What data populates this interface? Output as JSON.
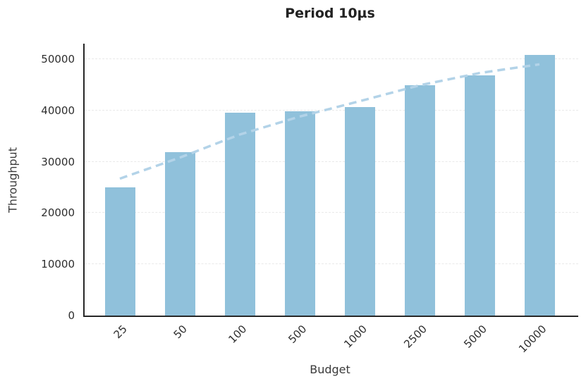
{
  "title": "Period 10µs",
  "chart_data": {
    "type": "bar",
    "title": "Period 10µs",
    "xlabel": "Budget",
    "ylabel": "Throughput",
    "categories": [
      "25",
      "50",
      "100",
      "500",
      "1000",
      "2500",
      "5000",
      "10000"
    ],
    "values": [
      25000,
      31900,
      39500,
      39800,
      40700,
      44900,
      46800,
      50800
    ],
    "yticks": [
      0,
      10000,
      20000,
      30000,
      40000,
      50000
    ],
    "ylim": [
      0,
      53000
    ],
    "grid": "horizontal-dashed",
    "legend": "none",
    "bar_color": "#90c1db",
    "trend_line": {
      "style": "dashed",
      "color": "#b3d3e8",
      "values": [
        26700,
        30800,
        35300,
        38800,
        41800,
        44900,
        47300,
        49000
      ]
    }
  }
}
